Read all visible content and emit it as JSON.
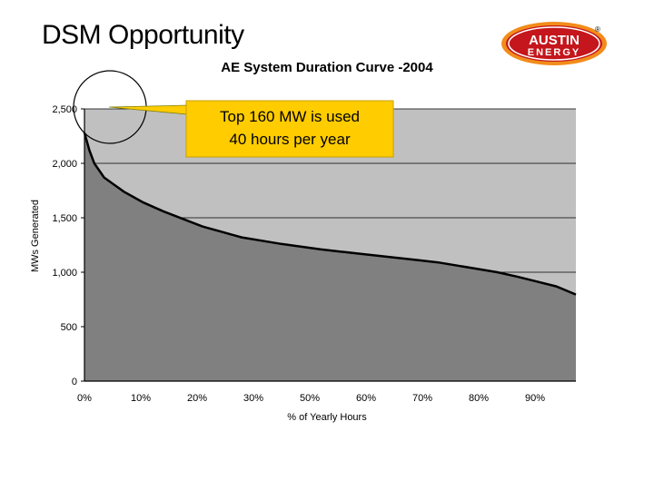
{
  "slide": {
    "title": "DSM Opportunity"
  },
  "logo": {
    "line1": "AUSTIN",
    "line2": "ENERGY",
    "registered": "®"
  },
  "callout": {
    "line1": "Top 160 MW is used",
    "line2": "40 hours per year"
  },
  "chart_data": {
    "type": "area",
    "title": "AE System Duration Curve -2004",
    "xlabel": "% of Yearly Hours",
    "ylabel": "MWs Generated",
    "ylim": [
      0,
      2500
    ],
    "grid": true,
    "y_ticks": [
      "0",
      "500",
      "1,000",
      "1,500",
      "2,000",
      "2,500"
    ],
    "x_tick_labels": [
      "0%",
      "10%",
      "20%",
      "30%",
      "50%",
      "60%",
      "70%",
      "80%",
      "90%"
    ],
    "x": [
      0,
      0.5,
      1,
      2,
      4,
      8,
      12,
      16,
      20,
      24,
      28,
      32,
      36,
      40,
      44,
      48,
      52,
      56,
      60,
      64,
      68,
      72,
      76,
      80,
      84,
      88,
      92,
      96,
      100
    ],
    "values": [
      2280,
      2200,
      2120,
      2000,
      1870,
      1740,
      1640,
      1560,
      1490,
      1420,
      1370,
      1320,
      1290,
      1260,
      1235,
      1210,
      1190,
      1170,
      1150,
      1130,
      1110,
      1090,
      1060,
      1030,
      1000,
      960,
      915,
      870,
      795
    ],
    "colors": {
      "fill": "#808080",
      "line": "#000000",
      "plot_bg": "#c0c0c0",
      "callout": "#ffcc00"
    }
  }
}
